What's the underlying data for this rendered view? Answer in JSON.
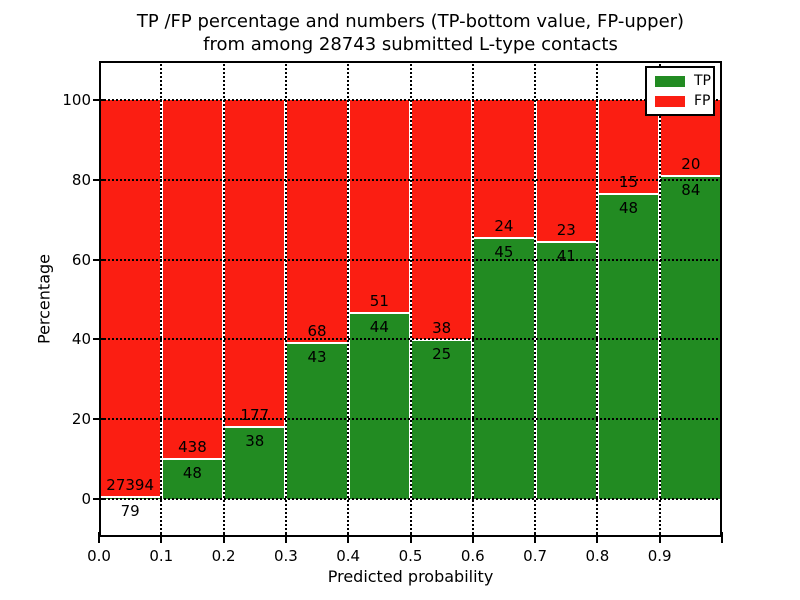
{
  "figure": {
    "title_line1": "TP /FP percentage and numbers (TP-bottom value, FP-upper)",
    "title_line2": "from among 28743 submitted L-type contacts",
    "background": "#ffffff"
  },
  "chart_data": {
    "type": "bar",
    "stacked": true,
    "normalized_to": 100,
    "title": "TP /FP percentage and numbers (TP-bottom value, FP-upper) from among 28743 submitted L-type contacts",
    "xlabel": "Predicted probability",
    "ylabel": "Percentage",
    "total_contacts": 28743,
    "categories": [
      "0.0-0.1",
      "0.1-0.2",
      "0.2-0.3",
      "0.3-0.4",
      "0.4-0.5",
      "0.5-0.6",
      "0.6-0.7",
      "0.7-0.8",
      "0.8-0.9",
      "0.9-1.0"
    ],
    "x_ticks": [
      "0.0",
      "0.1",
      "0.2",
      "0.3",
      "0.4",
      "0.5",
      "0.6",
      "0.7",
      "0.8",
      "0.9"
    ],
    "y_ticks": [
      0,
      20,
      40,
      60,
      80,
      100
    ],
    "ylim": [
      -9.5,
      109.5
    ],
    "xlim": [
      0.0,
      1.0
    ],
    "grid": "dotted",
    "series": [
      {
        "name": "TP",
        "color": "#228b22",
        "counts": [
          79,
          48,
          38,
          43,
          44,
          25,
          45,
          41,
          48,
          84
        ],
        "pct": [
          0.3,
          9.9,
          17.7,
          38.7,
          46.3,
          39.7,
          65.2,
          64.1,
          76.2,
          80.8
        ]
      },
      {
        "name": "FP",
        "color": "#fb1e12",
        "counts": [
          27394,
          438,
          177,
          68,
          51,
          38,
          24,
          23,
          15,
          20
        ],
        "pct": [
          99.7,
          90.1,
          82.3,
          61.3,
          53.7,
          60.3,
          34.8,
          35.9,
          23.8,
          19.2
        ]
      }
    ],
    "legend": {
      "position": "upper right",
      "entries": [
        {
          "label": "TP",
          "color": "#228b22"
        },
        {
          "label": "FP",
          "color": "#fb1e12"
        }
      ]
    }
  }
}
